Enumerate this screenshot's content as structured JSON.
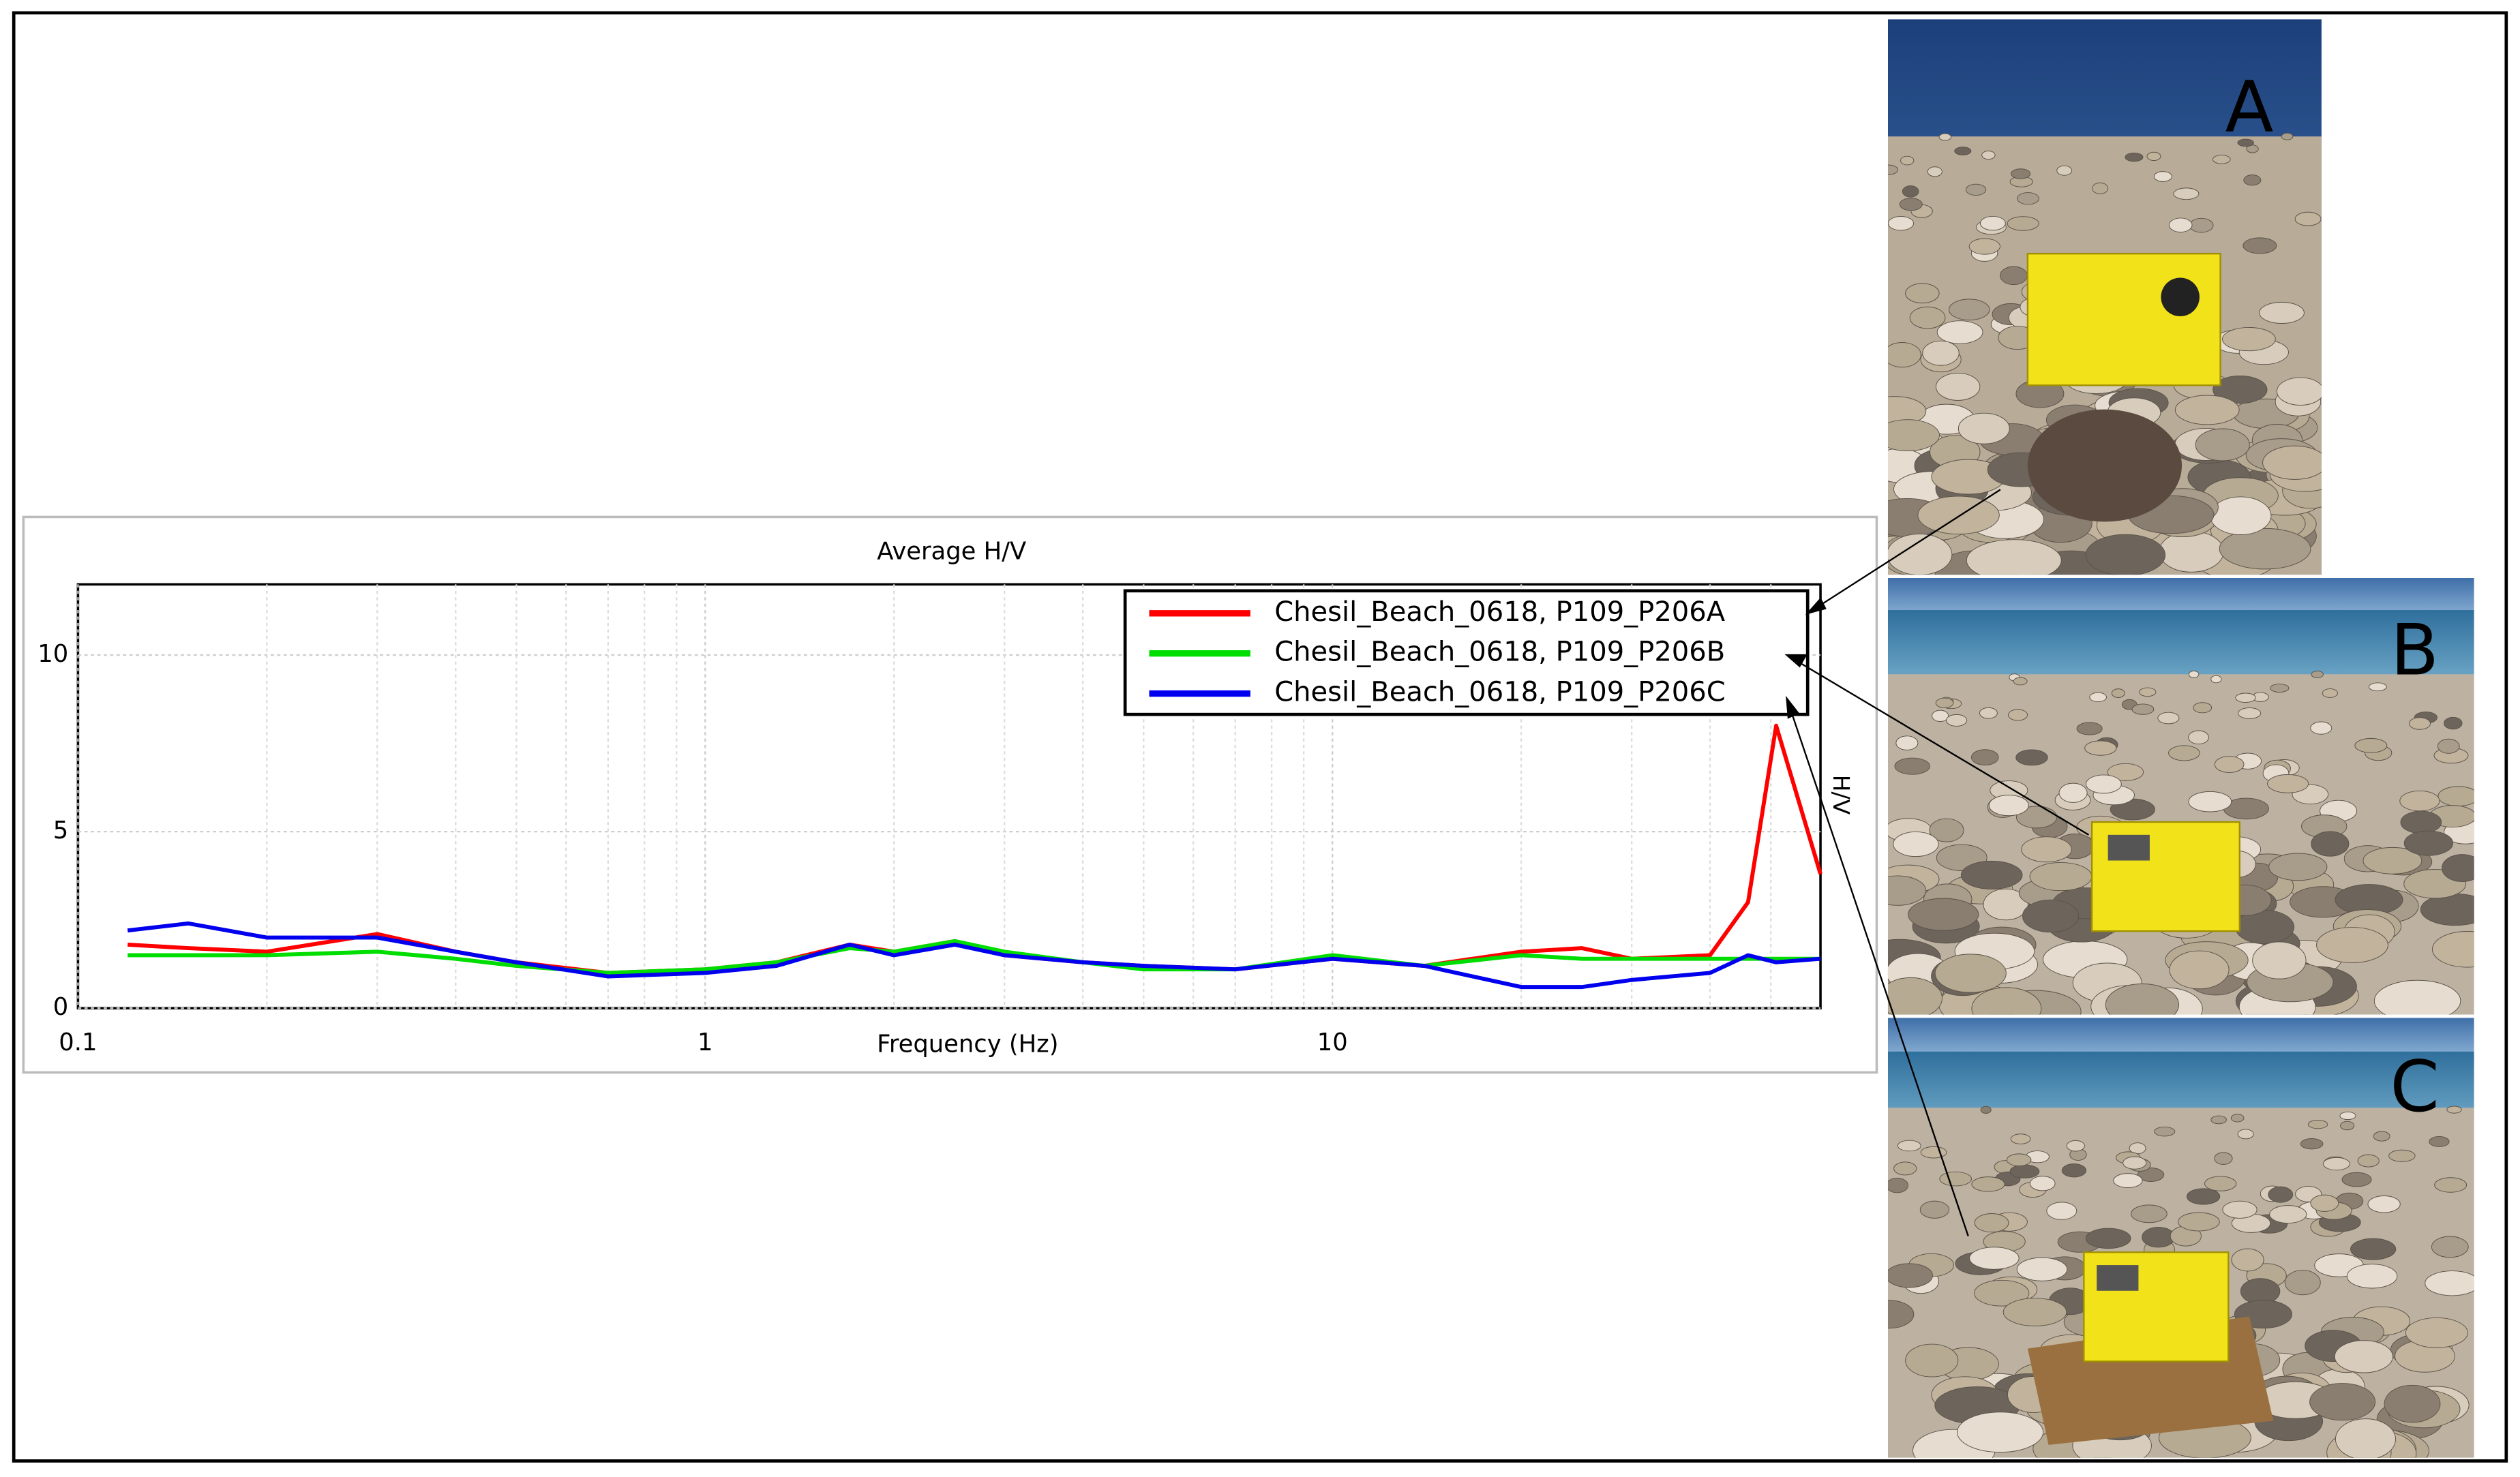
{
  "chart_data": {
    "type": "line",
    "title": "Average H/V",
    "x_label": "Frequency (Hz)",
    "y_label": "H/V",
    "x": [
      0.12,
      0.15,
      0.2,
      0.3,
      0.4,
      0.5,
      0.7,
      1,
      1.3,
      1.7,
      2,
      2.5,
      3,
      4,
      5,
      7,
      10,
      14,
      20,
      25,
      30,
      40,
      46,
      51,
      60
    ],
    "series": [
      {
        "name": "Chesil_Beach_0618, P109_P206A",
        "color": "#ff0000",
        "values": [
          1.8,
          1.7,
          1.6,
          2.1,
          1.6,
          1.3,
          1.0,
          1.1,
          1.3,
          1.8,
          1.6,
          1.9,
          1.5,
          1.3,
          1.2,
          1.1,
          1.4,
          1.2,
          1.6,
          1.7,
          1.4,
          1.5,
          3.0,
          8.0,
          3.8
        ]
      },
      {
        "name": "Chesil_Beach_0618, P109_P206B",
        "color": "#00dd00",
        "values": [
          1.5,
          1.5,
          1.5,
          1.6,
          1.4,
          1.2,
          1.0,
          1.1,
          1.3,
          1.7,
          1.6,
          1.9,
          1.6,
          1.3,
          1.1,
          1.1,
          1.5,
          1.2,
          1.5,
          1.4,
          1.4,
          1.4,
          1.4,
          1.4,
          1.4
        ]
      },
      {
        "name": "Chesil_Beach_0618, P109_P206C",
        "color": "#0000ee",
        "values": [
          2.2,
          2.4,
          2.0,
          2.0,
          1.6,
          1.3,
          0.9,
          1.0,
          1.2,
          1.8,
          1.5,
          1.8,
          1.5,
          1.3,
          1.2,
          1.1,
          1.4,
          1.2,
          0.6,
          0.6,
          0.8,
          1.0,
          1.5,
          1.3,
          1.4
        ]
      }
    ],
    "log_x": true,
    "xlim": [
      0.1,
      60
    ],
    "xticks": [
      0.1,
      1,
      10
    ],
    "ylim": [
      0,
      12
    ],
    "yticks": [
      0,
      5,
      10
    ],
    "grid": true,
    "legend": "top-right"
  },
  "panel_labels": [
    "A",
    "B",
    "C"
  ]
}
